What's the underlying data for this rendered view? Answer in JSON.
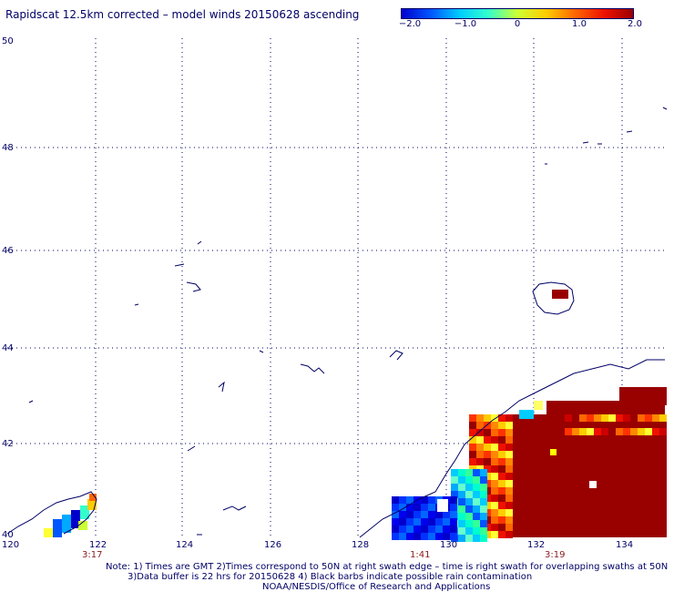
{
  "title": "Rapidscat 12.5km corrected – model winds 20150628 ascending",
  "colorbar": {
    "labels": [
      "−2.0",
      "−1.0",
      "0",
      "1.0",
      "2.0"
    ],
    "stops": [
      "#0000cc",
      "#0055ff",
      "#00ccff",
      "#33ffcc",
      "#ccff33",
      "#ffcc00",
      "#ff6600",
      "#ee1100",
      "#990000"
    ]
  },
  "axes": {
    "lon_ticks": [
      "120",
      "122",
      "124",
      "126",
      "128",
      "130",
      "132",
      "134"
    ],
    "lat_ticks": [
      "40",
      "42",
      "44",
      "46",
      "48",
      "50"
    ]
  },
  "swath_times": [
    "3:17",
    "1:41",
    "3:19"
  ],
  "notes": {
    "line1": "Note: 1) Times are GMT 2)Times correspond to 50N at right swath edge – time is right swath for overlapping swaths at 50N",
    "line2": "3)Data buffer is 22 hrs for 20150628 4) Black barbs indicate possible rain contamination",
    "line3": "NOAA/NESDIS/Office of Research and Applications"
  },
  "colors": {
    "text": "#000066",
    "coast": "#000066",
    "grid": "#000066",
    "time_labels": "#8b1a1a",
    "data_high": "#990000"
  }
}
